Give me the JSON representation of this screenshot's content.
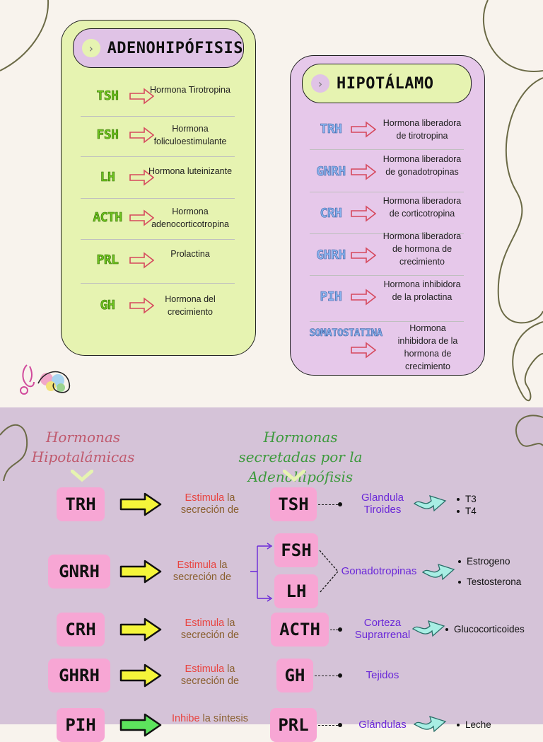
{
  "colors": {
    "card_green": "#e6f3b1",
    "card_purple": "#e6c8ea",
    "bottom_bg": "#d5c3d8",
    "box_pink": "#f7a6d4",
    "arrow_yellow": "#f5f53a",
    "arrow_green": "#5de35d",
    "target_purple": "#6a28d8",
    "keyword_red": "#e8433f"
  },
  "adeno_card": {
    "title": "ADENOHIPÓFISIS",
    "rows": [
      {
        "abbr": "TSH",
        "desc": "Hormona Tirotropina"
      },
      {
        "abbr": "FSH",
        "desc": "Hormona foliculoestimulante"
      },
      {
        "abbr": "LH",
        "desc": "Hormona luteinizante"
      },
      {
        "abbr": "ACTH",
        "desc": "Hormona adenocorticotropina"
      },
      {
        "abbr": "PRL",
        "desc": "Prolactina"
      },
      {
        "abbr": "GH",
        "desc": "Hormona del crecimiento"
      }
    ]
  },
  "hipo_card": {
    "title": "HIPOTÁLAMO",
    "rows": [
      {
        "abbr": "TRH",
        "desc": "Hormona liberadora de tirotropina"
      },
      {
        "abbr": "GNRH",
        "desc": "Hormona liberadora de gonadotropinas"
      },
      {
        "abbr": "CRH",
        "desc": "Hormona liberadora de corticotropina"
      },
      {
        "abbr": "GHRH",
        "desc": "Hormona liberadora de hormona de crecimiento"
      },
      {
        "abbr": "PIH",
        "desc": "Hormona inhibidora de la prolactina"
      },
      {
        "abbr": "SOMATOSTATINA",
        "desc": "Hormona inhibidora de la hormona de crecimiento"
      }
    ]
  },
  "flow": {
    "left_heading": "Hormonas Hipotalámicas",
    "right_heading": "Hormonas secretadas por la Adenohipófisis",
    "rows": [
      {
        "hypo": "TRH",
        "verb": "Estimula",
        "rest": "la secreción de",
        "adeno": [
          "TSH"
        ],
        "target": "Glandula Tiroides",
        "results": [
          "T3",
          "T4"
        ]
      },
      {
        "hypo": "GNRH",
        "verb": "Estimula",
        "rest": "la secreción de",
        "adeno": [
          "FSH",
          "LH"
        ],
        "target": "Gonadotropinas",
        "results": [
          "Estrogeno",
          "Testosterona"
        ]
      },
      {
        "hypo": "CRH",
        "verb": "Estimula",
        "rest": "la secreción de",
        "adeno": [
          "ACTH"
        ],
        "target": "Corteza Suprarrenal",
        "results": [
          "Glucocorticoides"
        ]
      },
      {
        "hypo": "GHRH",
        "verb": "Estimula",
        "rest": "la secreción de",
        "adeno": [
          "GH"
        ],
        "target": "Tejidos",
        "results": []
      },
      {
        "hypo": "PIH",
        "verb": "Inhibe",
        "rest": "la síntesis",
        "adeno": [
          "PRL"
        ],
        "target": "Glándulas",
        "results": [
          "Leche"
        ]
      }
    ]
  }
}
